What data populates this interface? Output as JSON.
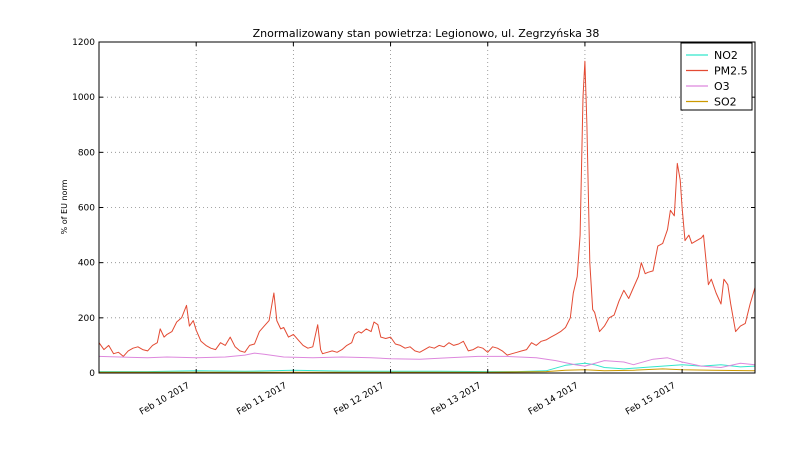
{
  "chart_data": {
    "type": "line",
    "title": "Znormalizowany stan powietrza: Legionowo, ul. Zegrzyńska 38",
    "xlabel": "",
    "ylabel": "% of EU norm",
    "x_range": [
      9.0,
      15.75
    ],
    "ylim": [
      0,
      1200
    ],
    "y_ticks": [
      0,
      200,
      400,
      600,
      800,
      1000,
      1200
    ],
    "x_ticks": [
      {
        "value": 10,
        "label": "Feb 10 2017"
      },
      {
        "value": 11,
        "label": "Feb 11 2017"
      },
      {
        "value": 12,
        "label": "Feb 12 2017"
      },
      {
        "value": 13,
        "label": "Feb 13 2017"
      },
      {
        "value": 14,
        "label": "Feb 14 2017"
      },
      {
        "value": 15,
        "label": "Feb 15 2017"
      }
    ],
    "grid": true,
    "legend_position": "top-right",
    "series": [
      {
        "name": "NO2",
        "color": "#33e6cc",
        "points": [
          [
            9.0,
            5
          ],
          [
            9.5,
            5
          ],
          [
            10.0,
            8
          ],
          [
            10.5,
            6
          ],
          [
            11.0,
            10
          ],
          [
            11.5,
            7
          ],
          [
            12.0,
            6
          ],
          [
            12.5,
            6
          ],
          [
            13.0,
            5
          ],
          [
            13.3,
            5
          ],
          [
            13.6,
            8
          ],
          [
            13.8,
            28
          ],
          [
            14.0,
            35
          ],
          [
            14.1,
            30
          ],
          [
            14.2,
            20
          ],
          [
            14.4,
            15
          ],
          [
            14.6,
            20
          ],
          [
            14.8,
            25
          ],
          [
            15.0,
            30
          ],
          [
            15.2,
            25
          ],
          [
            15.4,
            30
          ],
          [
            15.6,
            22
          ],
          [
            15.75,
            25
          ]
        ]
      },
      {
        "name": "PM2.5",
        "color": "#e34a33",
        "points": [
          [
            9.0,
            110
          ],
          [
            9.05,
            85
          ],
          [
            9.1,
            100
          ],
          [
            9.15,
            70
          ],
          [
            9.2,
            75
          ],
          [
            9.25,
            60
          ],
          [
            9.3,
            80
          ],
          [
            9.35,
            90
          ],
          [
            9.4,
            95
          ],
          [
            9.45,
            85
          ],
          [
            9.5,
            80
          ],
          [
            9.55,
            100
          ],
          [
            9.6,
            110
          ],
          [
            9.63,
            160
          ],
          [
            9.67,
            130
          ],
          [
            9.7,
            140
          ],
          [
            9.75,
            150
          ],
          [
            9.8,
            185
          ],
          [
            9.85,
            200
          ],
          [
            9.9,
            245
          ],
          [
            9.93,
            170
          ],
          [
            9.97,
            190
          ],
          [
            10.0,
            155
          ],
          [
            10.05,
            115
          ],
          [
            10.1,
            100
          ],
          [
            10.15,
            90
          ],
          [
            10.2,
            85
          ],
          [
            10.25,
            110
          ],
          [
            10.3,
            100
          ],
          [
            10.35,
            130
          ],
          [
            10.4,
            95
          ],
          [
            10.45,
            80
          ],
          [
            10.5,
            75
          ],
          [
            10.55,
            100
          ],
          [
            10.6,
            105
          ],
          [
            10.65,
            150
          ],
          [
            10.7,
            170
          ],
          [
            10.75,
            190
          ],
          [
            10.8,
            290
          ],
          [
            10.83,
            190
          ],
          [
            10.87,
            160
          ],
          [
            10.9,
            165
          ],
          [
            10.95,
            130
          ],
          [
            11.0,
            140
          ],
          [
            11.05,
            120
          ],
          [
            11.1,
            100
          ],
          [
            11.15,
            90
          ],
          [
            11.2,
            95
          ],
          [
            11.25,
            175
          ],
          [
            11.28,
            85
          ],
          [
            11.3,
            70
          ],
          [
            11.35,
            75
          ],
          [
            11.4,
            80
          ],
          [
            11.45,
            75
          ],
          [
            11.5,
            85
          ],
          [
            11.55,
            100
          ],
          [
            11.6,
            110
          ],
          [
            11.63,
            140
          ],
          [
            11.67,
            150
          ],
          [
            11.7,
            145
          ],
          [
            11.75,
            160
          ],
          [
            11.8,
            150
          ],
          [
            11.83,
            185
          ],
          [
            11.87,
            175
          ],
          [
            11.9,
            130
          ],
          [
            11.95,
            125
          ],
          [
            12.0,
            130
          ],
          [
            12.05,
            105
          ],
          [
            12.1,
            100
          ],
          [
            12.15,
            90
          ],
          [
            12.2,
            95
          ],
          [
            12.25,
            80
          ],
          [
            12.3,
            75
          ],
          [
            12.35,
            85
          ],
          [
            12.4,
            95
          ],
          [
            12.45,
            90
          ],
          [
            12.5,
            100
          ],
          [
            12.55,
            95
          ],
          [
            12.6,
            110
          ],
          [
            12.65,
            100
          ],
          [
            12.7,
            105
          ],
          [
            12.75,
            115
          ],
          [
            12.8,
            80
          ],
          [
            12.85,
            85
          ],
          [
            12.9,
            95
          ],
          [
            12.95,
            90
          ],
          [
            13.0,
            75
          ],
          [
            13.05,
            95
          ],
          [
            13.1,
            90
          ],
          [
            13.15,
            80
          ],
          [
            13.2,
            65
          ],
          [
            13.25,
            70
          ],
          [
            13.3,
            75
          ],
          [
            13.35,
            80
          ],
          [
            13.4,
            85
          ],
          [
            13.45,
            110
          ],
          [
            13.5,
            100
          ],
          [
            13.55,
            115
          ],
          [
            13.6,
            120
          ],
          [
            13.65,
            130
          ],
          [
            13.7,
            140
          ],
          [
            13.75,
            150
          ],
          [
            13.8,
            165
          ],
          [
            13.85,
            200
          ],
          [
            13.88,
            290
          ],
          [
            13.92,
            350
          ],
          [
            13.95,
            500
          ],
          [
            13.98,
            1000
          ],
          [
            14.0,
            1130
          ],
          [
            14.02,
            900
          ],
          [
            14.05,
            400
          ],
          [
            14.08,
            230
          ],
          [
            14.1,
            220
          ],
          [
            14.15,
            150
          ],
          [
            14.2,
            170
          ],
          [
            14.25,
            200
          ],
          [
            14.3,
            210
          ],
          [
            14.35,
            260
          ],
          [
            14.4,
            300
          ],
          [
            14.45,
            270
          ],
          [
            14.5,
            310
          ],
          [
            14.55,
            350
          ],
          [
            14.58,
            400
          ],
          [
            14.62,
            360
          ],
          [
            14.65,
            365
          ],
          [
            14.7,
            370
          ],
          [
            14.75,
            460
          ],
          [
            14.8,
            470
          ],
          [
            14.85,
            520
          ],
          [
            14.88,
            590
          ],
          [
            14.92,
            570
          ],
          [
            14.95,
            760
          ],
          [
            14.98,
            700
          ],
          [
            15.0,
            600
          ],
          [
            15.03,
            480
          ],
          [
            15.07,
            500
          ],
          [
            15.1,
            470
          ],
          [
            15.15,
            480
          ],
          [
            15.2,
            490
          ],
          [
            15.22,
            500
          ],
          [
            15.27,
            320
          ],
          [
            15.3,
            340
          ],
          [
            15.35,
            290
          ],
          [
            15.4,
            250
          ],
          [
            15.43,
            340
          ],
          [
            15.47,
            320
          ],
          [
            15.5,
            250
          ],
          [
            15.55,
            150
          ],
          [
            15.6,
            170
          ],
          [
            15.65,
            180
          ],
          [
            15.7,
            250
          ],
          [
            15.75,
            310
          ]
        ]
      },
      {
        "name": "O3",
        "color": "#dd88dd",
        "points": [
          [
            9.0,
            60
          ],
          [
            9.5,
            55
          ],
          [
            9.7,
            58
          ],
          [
            10.0,
            55
          ],
          [
            10.3,
            58
          ],
          [
            10.5,
            65
          ],
          [
            10.6,
            72
          ],
          [
            10.7,
            68
          ],
          [
            10.9,
            58
          ],
          [
            11.2,
            55
          ],
          [
            11.5,
            58
          ],
          [
            11.8,
            55
          ],
          [
            12.0,
            52
          ],
          [
            12.3,
            50
          ],
          [
            12.6,
            55
          ],
          [
            12.9,
            60
          ],
          [
            13.2,
            60
          ],
          [
            13.5,
            55
          ],
          [
            13.7,
            45
          ],
          [
            13.9,
            30
          ],
          [
            14.0,
            25
          ],
          [
            14.2,
            45
          ],
          [
            14.4,
            40
          ],
          [
            14.5,
            30
          ],
          [
            14.7,
            50
          ],
          [
            14.85,
            55
          ],
          [
            15.0,
            40
          ],
          [
            15.2,
            25
          ],
          [
            15.4,
            20
          ],
          [
            15.6,
            35
          ],
          [
            15.75,
            30
          ]
        ]
      },
      {
        "name": "SO2",
        "color": "#cc9900",
        "points": [
          [
            9.0,
            3
          ],
          [
            10.0,
            3
          ],
          [
            11.0,
            3
          ],
          [
            12.0,
            3
          ],
          [
            13.0,
            3
          ],
          [
            13.6,
            5
          ],
          [
            13.8,
            10
          ],
          [
            14.0,
            12
          ],
          [
            14.2,
            8
          ],
          [
            14.5,
            10
          ],
          [
            14.8,
            15
          ],
          [
            15.0,
            12
          ],
          [
            15.3,
            10
          ],
          [
            15.75,
            8
          ]
        ]
      }
    ]
  }
}
